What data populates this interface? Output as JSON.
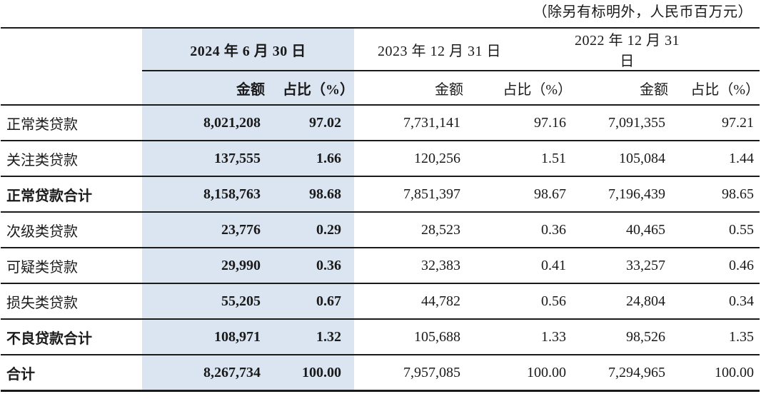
{
  "unit_note": "（除另有标明外，人民币百万元）",
  "colors": {
    "highlight_column": "#dbe5f1",
    "rule": "#1a1a1a",
    "text": "#1a1a1a"
  },
  "table": {
    "column_groups": [
      {
        "label": "2024 年 6 月 30 日",
        "highlighted": true
      },
      {
        "label": "2023 年 12 月 31 日",
        "highlighted": false
      },
      {
        "label": "2022 年 12 月 31 日",
        "highlighted": false
      }
    ],
    "subheaders": {
      "amount": "金额",
      "ratio": "占比（%）"
    },
    "rows": [
      {
        "label": "正常类贷款",
        "cells": [
          "8,021,208",
          "97.02",
          "7,731,141",
          "97.16",
          "7,091,355",
          "97.21"
        ]
      },
      {
        "label": "关注类贷款",
        "cells": [
          "137,555",
          "1.66",
          "120,256",
          "1.51",
          "105,084",
          "1.44"
        ]
      },
      {
        "label": "正常贷款合计",
        "cells": [
          "8,158,763",
          "98.68",
          "7,851,397",
          "98.67",
          "7,196,439",
          "98.65"
        ]
      },
      {
        "label": "次级类贷款",
        "cells": [
          "23,776",
          "0.29",
          "28,523",
          "0.36",
          "40,465",
          "0.55"
        ]
      },
      {
        "label": "可疑类贷款",
        "cells": [
          "29,990",
          "0.36",
          "32,383",
          "0.41",
          "33,257",
          "0.46"
        ]
      },
      {
        "label": "损失类贷款",
        "cells": [
          "55,205",
          "0.67",
          "44,782",
          "0.56",
          "24,804",
          "0.34"
        ]
      },
      {
        "label": "不良贷款合计",
        "cells": [
          "108,971",
          "1.32",
          "105,688",
          "1.33",
          "98,526",
          "1.35"
        ]
      },
      {
        "label": "合计",
        "cells": [
          "8,267,734",
          "100.00",
          "7,957,085",
          "100.00",
          "7,294,965",
          "100.00"
        ]
      }
    ]
  }
}
